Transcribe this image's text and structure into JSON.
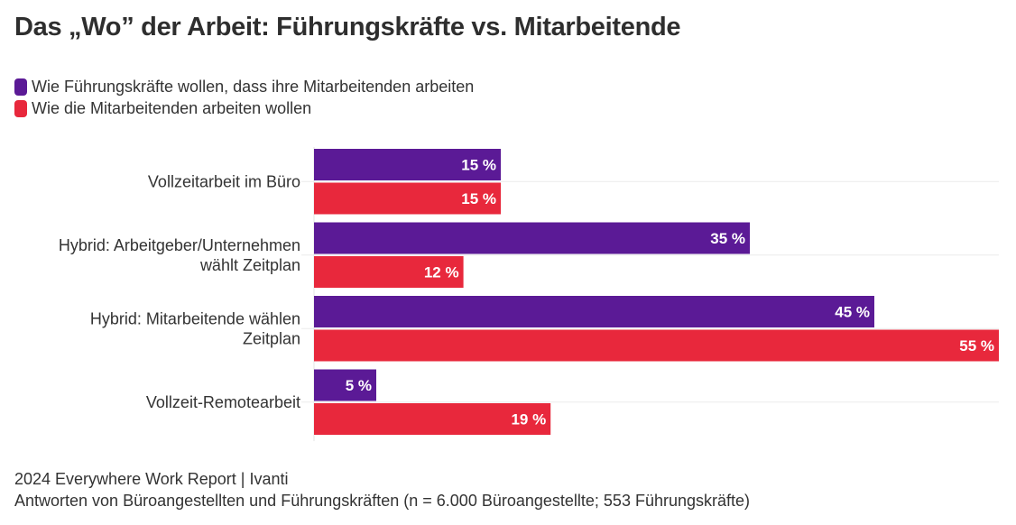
{
  "title": "Das „Wo” der Arbeit: Führungskräfte vs. Mitarbeitende",
  "legend": [
    {
      "label": "Wie Führungskräfte wollen, dass ihre Mitarbeitenden arbeiten",
      "color": "#5b1a96"
    },
    {
      "label": "Wie die Mitarbeitenden arbeiten wollen",
      "color": "#e8283c"
    }
  ],
  "footer": {
    "source": "2024 Everywhere Work Report | Ivanti",
    "note": "Antworten von Büroangestellten und Führungskräften (n = 6.000 Büroangestellte; 553 Führungskräfte)"
  },
  "chart_data": {
    "type": "bar",
    "orientation": "horizontal",
    "title": "Das „Wo” der Arbeit: Führungskräfte vs. Mitarbeitende",
    "xlabel": "",
    "ylabel": "",
    "xlim": [
      0,
      55
    ],
    "grid": true,
    "legend_position": "top-left",
    "value_suffix": " %",
    "categories": [
      [
        "Vollzeitarbeit im Büro"
      ],
      [
        "Hybrid: Arbeitgeber/Unternehmen",
        "wählt Zeitplan"
      ],
      [
        "Hybrid: Mitarbeitende wählen",
        "Zeitplan"
      ],
      [
        "Vollzeit-Remotearbeit"
      ]
    ],
    "series": [
      {
        "name": "Wie Führungskräfte wollen, dass ihre Mitarbeitenden arbeiten",
        "color": "#5b1a96",
        "values": [
          15,
          35,
          45,
          5
        ]
      },
      {
        "name": "Wie die Mitarbeitenden arbeiten wollen",
        "color": "#e8283c",
        "values": [
          15,
          12,
          55,
          19
        ]
      }
    ]
  }
}
